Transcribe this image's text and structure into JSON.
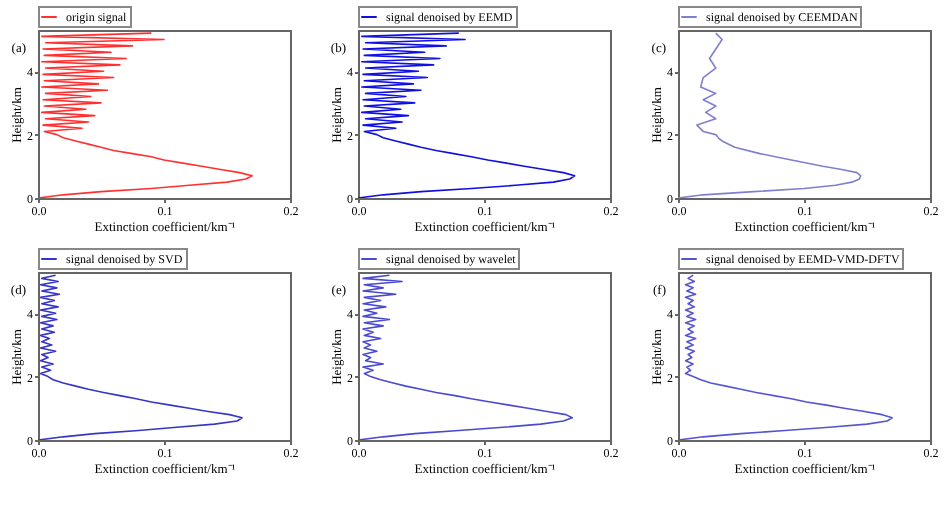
{
  "chart_data": [
    {
      "type": "line",
      "xlabel": "Extinction coefficient/km⁻¹",
      "ylabel": "Height/km",
      "xlim": [
        0,
        0.2
      ],
      "ylim": [
        0,
        5.3
      ],
      "xticks": [
        {
          "value": 0,
          "label": "0.0"
        },
        {
          "value": 0.1,
          "label": "0.1"
        },
        {
          "value": 0.2,
          "label": "0.2"
        }
      ],
      "yticks": [
        0,
        2,
        4
      ],
      "legend": "top",
      "annotations": [
        "(a)"
      ],
      "x": [
        0,
        0.02,
        0.05,
        0.09,
        0.12,
        0.15,
        0.165,
        0.17,
        0.16,
        0.145,
        0.13,
        0.115,
        0.1,
        0.09,
        0.075,
        0.06,
        0.05,
        0.04,
        0.03,
        0.02,
        0.015,
        0.005,
        0.035,
        0.004,
        0.04,
        0.006,
        0.045,
        0.003,
        0.038,
        0.005,
        0.05,
        0.004,
        0.042,
        0.006,
        0.055,
        0.003,
        0.048,
        0.005,
        0.06,
        0.004,
        0.052,
        0.006,
        0.065,
        0.003,
        0.07,
        0.005,
        0.058,
        0.004,
        0.075,
        0.006,
        0.1,
        0.003,
        0.09
      ],
      "series": [
        {
          "name": "origin signal",
          "color": "#ff3030",
          "values": [
            0,
            0.1,
            0.2,
            0.3,
            0.4,
            0.5,
            0.6,
            0.7,
            0.8,
            0.9,
            1.0,
            1.1,
            1.2,
            1.3,
            1.4,
            1.5,
            1.6,
            1.7,
            1.8,
            1.9,
            2.0,
            2.1,
            2.2,
            2.3,
            2.4,
            2.5,
            2.6,
            2.7,
            2.8,
            2.9,
            3.0,
            3.1,
            3.2,
            3.3,
            3.4,
            3.5,
            3.6,
            3.7,
            3.8,
            3.9,
            4.0,
            4.1,
            4.2,
            4.3,
            4.4,
            4.5,
            4.6,
            4.7,
            4.8,
            4.9,
            5.0,
            5.1,
            5.2
          ]
        }
      ]
    },
    {
      "type": "line",
      "xlabel": "Extinction coefficient/km⁻¹",
      "ylabel": "Height/km",
      "xlim": [
        0,
        0.2
      ],
      "ylim": [
        0,
        5.3
      ],
      "xticks": [
        {
          "value": 0,
          "label": "0.0"
        },
        {
          "value": 0.1,
          "label": "0.1"
        },
        {
          "value": 0.2,
          "label": "0.2"
        }
      ],
      "yticks": [
        0,
        2,
        4
      ],
      "legend": "top",
      "annotations": [
        "(b)"
      ],
      "x": [
        0,
        0.02,
        0.05,
        0.09,
        0.125,
        0.155,
        0.168,
        0.172,
        0.163,
        0.148,
        0.132,
        0.118,
        0.103,
        0.09,
        0.076,
        0.062,
        0.05,
        0.04,
        0.03,
        0.02,
        0.015,
        0.005,
        0.03,
        0.004,
        0.035,
        0.006,
        0.04,
        0.003,
        0.034,
        0.005,
        0.045,
        0.004,
        0.038,
        0.006,
        0.05,
        0.003,
        0.044,
        0.005,
        0.055,
        0.004,
        0.048,
        0.006,
        0.06,
        0.003,
        0.065,
        0.005,
        0.053,
        0.004,
        0.07,
        0.006,
        0.085,
        0.003,
        0.08
      ],
      "series": [
        {
          "name": "signal denoised by EEMD",
          "color": "#1010e0",
          "values": [
            0,
            0.1,
            0.2,
            0.3,
            0.4,
            0.5,
            0.6,
            0.7,
            0.8,
            0.9,
            1.0,
            1.1,
            1.2,
            1.3,
            1.4,
            1.5,
            1.6,
            1.7,
            1.8,
            1.9,
            2.0,
            2.1,
            2.2,
            2.3,
            2.4,
            2.5,
            2.6,
            2.7,
            2.8,
            2.9,
            3.0,
            3.1,
            3.2,
            3.3,
            3.4,
            3.5,
            3.6,
            3.7,
            3.8,
            3.9,
            4.0,
            4.1,
            4.2,
            4.3,
            4.4,
            4.5,
            4.6,
            4.7,
            4.8,
            4.9,
            5.0,
            5.1,
            5.2
          ]
        }
      ]
    },
    {
      "type": "line",
      "xlabel": "Extinction coefficient/km⁻¹",
      "ylabel": "Height/km",
      "xlim": [
        0,
        0.2
      ],
      "ylim": [
        0,
        5.3
      ],
      "xticks": [
        {
          "value": 0,
          "label": "0.0"
        },
        {
          "value": 0.1,
          "label": "0.1"
        },
        {
          "value": 0.2,
          "label": "0.2"
        }
      ],
      "yticks": [
        0,
        2,
        4
      ],
      "legend": "top",
      "annotations": [
        "(c)"
      ],
      "x": [
        0,
        0.02,
        0.06,
        0.1,
        0.125,
        0.138,
        0.144,
        0.145,
        0.142,
        0.13,
        0.115,
        0.09,
        0.065,
        0.045,
        0.035,
        0.032,
        0.03,
        0.02,
        0.015,
        0.03,
        0.022,
        0.03,
        0.02,
        0.03,
        0.018,
        0.02,
        0.03,
        0.025,
        0.03,
        0.035,
        0.03
      ],
      "series": [
        {
          "name": "signal denoised by CEEMDAN",
          "color": "#7f7fd0",
          "values": [
            0,
            0.1,
            0.2,
            0.3,
            0.4,
            0.5,
            0.6,
            0.7,
            0.8,
            0.9,
            1.0,
            1.2,
            1.4,
            1.6,
            1.8,
            1.9,
            2.0,
            2.1,
            2.3,
            2.5,
            2.7,
            2.9,
            3.1,
            3.3,
            3.5,
            3.8,
            4.1,
            4.4,
            4.7,
            5.0,
            5.2
          ]
        }
      ]
    },
    {
      "type": "line",
      "xlabel": "Extinction coefficient/km⁻¹",
      "ylabel": "Height/km",
      "xlim": [
        0,
        0.2
      ],
      "ylim": [
        0,
        5.3
      ],
      "xticks": [
        {
          "value": 0,
          "label": "0.0"
        },
        {
          "value": 0.1,
          "label": "0.1"
        },
        {
          "value": 0.2,
          "label": "0.2"
        }
      ],
      "yticks": [
        0,
        2,
        4
      ],
      "legend": "top",
      "annotations": [
        "(d)"
      ],
      "x": [
        0,
        0.02,
        0.045,
        0.08,
        0.11,
        0.14,
        0.158,
        0.162,
        0.152,
        0.135,
        0.12,
        0.105,
        0.09,
        0.078,
        0.065,
        0.052,
        0.04,
        0.03,
        0.02,
        0.012,
        0.008,
        0.002,
        0.01,
        0.003,
        0.012,
        0.002,
        0.008,
        0.003,
        0.014,
        0.002,
        0.011,
        0.003,
        0.009,
        0.002,
        0.013,
        0.003,
        0.012,
        0.002,
        0.015,
        0.003,
        0.014,
        0.002,
        0.016,
        0.003,
        0.013,
        0.002,
        0.017,
        0.003,
        0.015,
        0.002,
        0.016,
        0.003,
        0.014
      ],
      "series": [
        {
          "name": "signal denoised by SVD",
          "color": "#3535c8",
          "values": [
            0,
            0.1,
            0.2,
            0.3,
            0.4,
            0.5,
            0.6,
            0.7,
            0.8,
            0.9,
            1.0,
            1.1,
            1.2,
            1.3,
            1.4,
            1.5,
            1.6,
            1.7,
            1.8,
            1.9,
            2.0,
            2.1,
            2.2,
            2.3,
            2.4,
            2.5,
            2.6,
            2.7,
            2.8,
            2.9,
            3.0,
            3.1,
            3.2,
            3.3,
            3.4,
            3.5,
            3.6,
            3.7,
            3.8,
            3.9,
            4.0,
            4.1,
            4.2,
            4.3,
            4.4,
            4.5,
            4.6,
            4.7,
            4.8,
            4.9,
            5.0,
            5.1,
            5.2
          ]
        }
      ]
    },
    {
      "type": "line",
      "xlabel": "Extinction coefficient/km⁻¹",
      "ylabel": "Height/km",
      "xlim": [
        0,
        0.2
      ],
      "ylim": [
        0,
        5.3
      ],
      "xticks": [
        {
          "value": 0,
          "label": "0.0"
        },
        {
          "value": 0.1,
          "label": "0.1"
        },
        {
          "value": 0.2,
          "label": "0.2"
        }
      ],
      "yticks": [
        0,
        2,
        4
      ],
      "legend": "top",
      "annotations": [
        "(e)"
      ],
      "x": [
        0,
        0.02,
        0.045,
        0.08,
        0.115,
        0.145,
        0.163,
        0.17,
        0.165,
        0.15,
        0.135,
        0.12,
        0.105,
        0.09,
        0.077,
        0.062,
        0.05,
        0.038,
        0.028,
        0.018,
        0.01,
        0.005,
        0.012,
        0.004,
        0.02,
        0.006,
        0.01,
        0.004,
        0.015,
        0.005,
        0.01,
        0.004,
        0.018,
        0.005,
        0.012,
        0.004,
        0.02,
        0.005,
        0.025,
        0.004,
        0.015,
        0.005,
        0.022,
        0.004,
        0.018,
        0.005,
        0.03,
        0.004,
        0.02,
        0.005,
        0.035,
        0.004,
        0.025
      ],
      "series": [
        {
          "name": "signal denoised by wavelet",
          "color": "#4a4ad0",
          "values": [
            0,
            0.1,
            0.2,
            0.3,
            0.4,
            0.5,
            0.6,
            0.7,
            0.8,
            0.9,
            1.0,
            1.1,
            1.2,
            1.3,
            1.4,
            1.5,
            1.6,
            1.7,
            1.8,
            1.9,
            2.0,
            2.1,
            2.2,
            2.3,
            2.4,
            2.5,
            2.6,
            2.7,
            2.8,
            2.9,
            3.0,
            3.1,
            3.2,
            3.3,
            3.4,
            3.5,
            3.6,
            3.7,
            3.8,
            3.9,
            4.0,
            4.1,
            4.2,
            4.3,
            4.4,
            4.5,
            4.6,
            4.7,
            4.8,
            4.9,
            5.0,
            5.1,
            5.2
          ]
        }
      ]
    },
    {
      "type": "line",
      "xlabel": "Extinction coefficient/km⁻¹",
      "ylabel": "Height/km",
      "xlim": [
        0,
        0.2
      ],
      "ylim": [
        0,
        5.3
      ],
      "xticks": [
        {
          "value": 0,
          "label": "0.0"
        },
        {
          "value": 0.1,
          "label": "0.1"
        },
        {
          "value": 0.2,
          "label": "0.2"
        }
      ],
      "yticks": [
        0,
        2,
        4
      ],
      "legend": "top",
      "annotations": [
        "(f)"
      ],
      "x": [
        0,
        0.02,
        0.05,
        0.085,
        0.12,
        0.15,
        0.166,
        0.17,
        0.162,
        0.148,
        0.132,
        0.118,
        0.102,
        0.09,
        0.076,
        0.062,
        0.05,
        0.038,
        0.026,
        0.018,
        0.012,
        0.006,
        0.01,
        0.007,
        0.012,
        0.006,
        0.011,
        0.008,
        0.013,
        0.006,
        0.012,
        0.007,
        0.014,
        0.006,
        0.012,
        0.008,
        0.013,
        0.006,
        0.014,
        0.007,
        0.012,
        0.006,
        0.013,
        0.008,
        0.012,
        0.006,
        0.014,
        0.007,
        0.012,
        0.006,
        0.013,
        0.008,
        0.012
      ],
      "series": [
        {
          "name": "signal denoised by EEMD-VMD-DFTV",
          "color": "#5555d0",
          "values": [
            0,
            0.1,
            0.2,
            0.3,
            0.4,
            0.5,
            0.6,
            0.7,
            0.8,
            0.9,
            1.0,
            1.1,
            1.2,
            1.3,
            1.4,
            1.5,
            1.6,
            1.7,
            1.8,
            1.9,
            2.0,
            2.1,
            2.2,
            2.3,
            2.4,
            2.5,
            2.6,
            2.7,
            2.8,
            2.9,
            3.0,
            3.1,
            3.2,
            3.3,
            3.4,
            3.5,
            3.6,
            3.7,
            3.8,
            3.9,
            4.0,
            4.1,
            4.2,
            4.3,
            4.4,
            4.5,
            4.6,
            4.7,
            4.8,
            4.9,
            5.0,
            5.1,
            5.2
          ]
        }
      ]
    }
  ]
}
